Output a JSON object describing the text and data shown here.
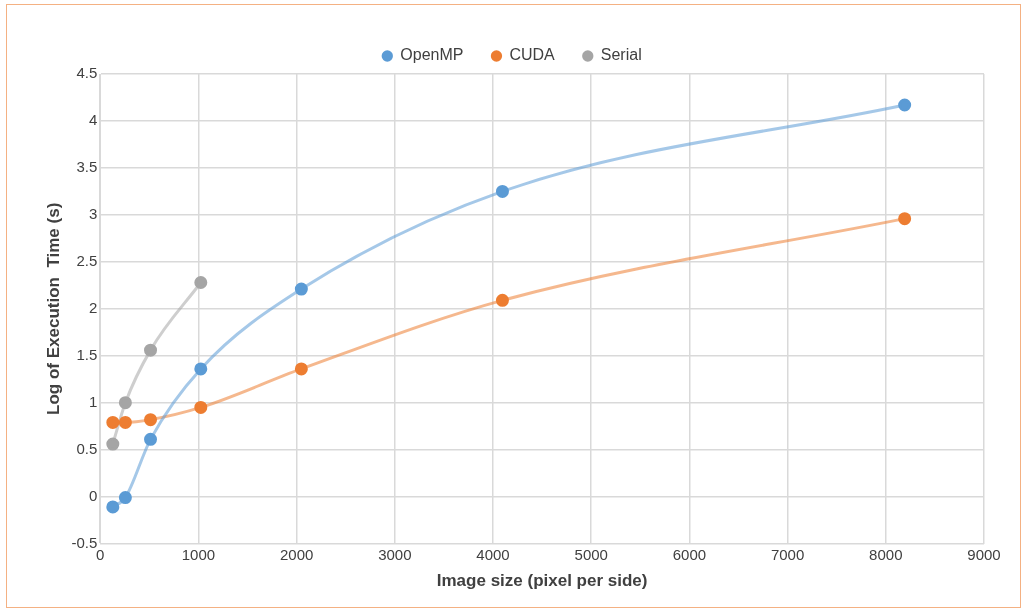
{
  "chart_data": {
    "type": "line",
    "xlabel": "Image size (pixel per side)",
    "ylabel": "Log of Execution  Time (s)",
    "x": [
      128,
      256,
      512,
      1024,
      2048,
      4096,
      8192
    ],
    "series": [
      {
        "name": "OpenMP",
        "color": "#5b9bd5",
        "values": [
          -0.11,
          -0.01,
          0.61,
          1.36,
          2.21,
          3.25,
          4.17
        ]
      },
      {
        "name": "CUDA",
        "color": "#ed7d31",
        "values": [
          0.79,
          0.79,
          0.82,
          0.95,
          1.36,
          2.09,
          2.96
        ]
      },
      {
        "name": "Serial",
        "color": "#a5a5a5",
        "values": [
          0.56,
          1.0,
          1.56,
          2.28,
          null,
          null,
          null
        ]
      }
    ],
    "xlim": [
      0,
      9000
    ],
    "xticks": [
      0,
      1000,
      2000,
      3000,
      4000,
      5000,
      6000,
      7000,
      8000,
      9000
    ],
    "ylim": [
      -0.5,
      4.5
    ],
    "yticks": [
      -0.5,
      0,
      0.5,
      1,
      1.5,
      2,
      2.5,
      3,
      3.5,
      4,
      4.5
    ],
    "grid": true,
    "legend": "top",
    "marker": "circle",
    "line_style": "solid"
  }
}
